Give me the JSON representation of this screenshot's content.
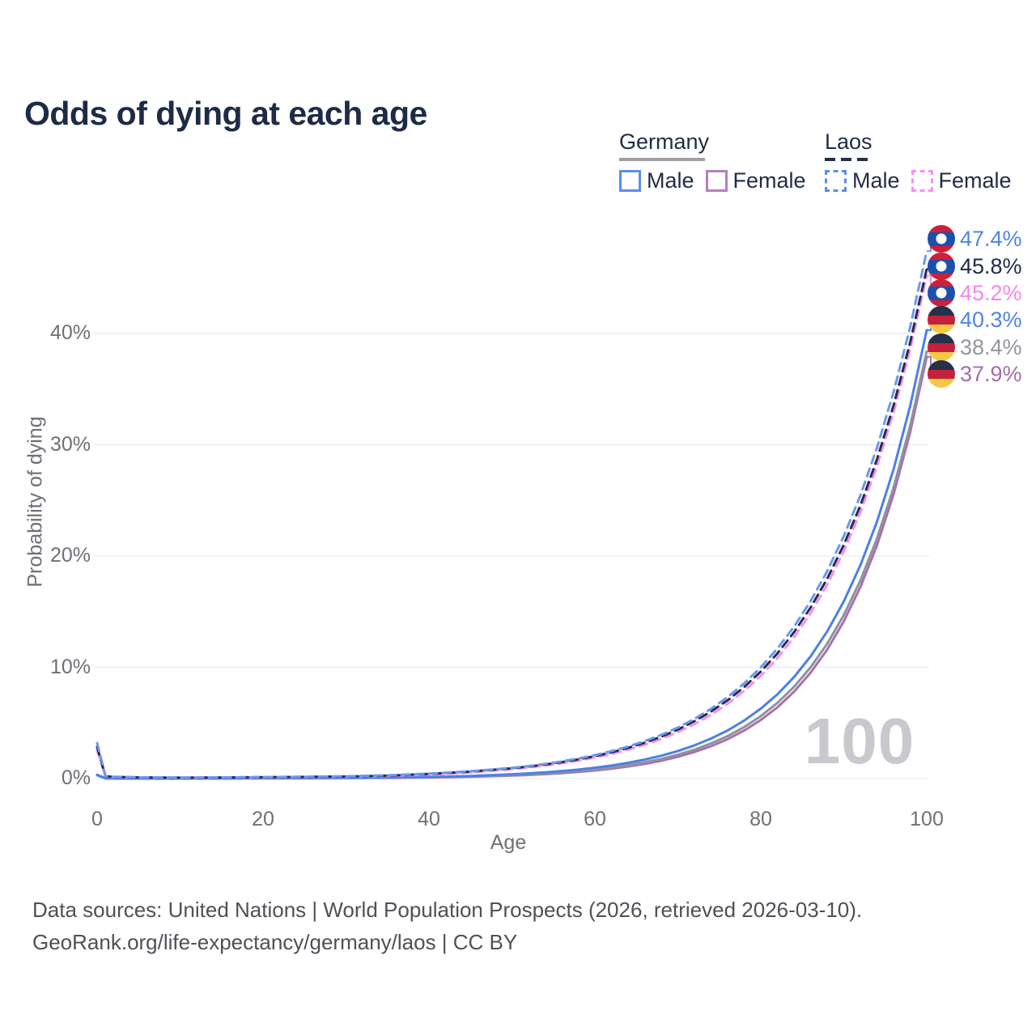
{
  "title": "Odds of dying at each age",
  "legend": {
    "groups": [
      {
        "label": "Germany",
        "line_style": "solid",
        "line_color": "#9d9da3",
        "items": [
          {
            "label": "Male",
            "swatch_color": "#5b8def",
            "swatch_style": "solid"
          },
          {
            "label": "Female",
            "swatch_color": "#b77dbf",
            "swatch_style": "solid"
          }
        ]
      },
      {
        "label": "Laos",
        "line_style": "dashed",
        "line_color": "#232f49",
        "items": [
          {
            "label": "Male",
            "swatch_color": "#5b8def",
            "swatch_style": "dashed"
          },
          {
            "label": "Female",
            "swatch_color": "#f98df2",
            "swatch_style": "dashed"
          }
        ]
      }
    ]
  },
  "watermark": "100",
  "footer": {
    "line1": "Data sources: United Nations | World Population Prospects (2026, retrieved 2026-03-10).",
    "line2": "GeoRank.org/life-expectancy/germany/laos | CC BY"
  },
  "flags": {
    "laos": {
      "stripes": [
        "#ce2038",
        "#1b50ae",
        "#ce2038"
      ],
      "stripe_heights": [
        25,
        50,
        25
      ],
      "disc": "#ffffff"
    },
    "germany": {
      "stripes": [
        "#26304a",
        "#c5203c",
        "#f5c843"
      ],
      "stripe_heights": [
        34,
        33,
        33
      ]
    }
  },
  "chart_data": {
    "type": "line",
    "title": "Odds of dying at each age",
    "xlabel": "Age",
    "ylabel": "Probability of dying",
    "xlim": [
      0,
      100
    ],
    "ylim": [
      0,
      47.5
    ],
    "x_ticks": [
      0,
      20,
      40,
      60,
      80,
      100
    ],
    "x_tick_labels": [
      "0",
      "20",
      "40",
      "60",
      "80",
      "100"
    ],
    "y_ticks": [
      0,
      10,
      20,
      30,
      40
    ],
    "y_tick_labels": [
      "0%",
      "10%",
      "20%",
      "30%",
      "40%"
    ],
    "grid": "horizontal",
    "legend_position": "top-right",
    "ages": [
      0,
      1,
      2,
      5,
      10,
      15,
      20,
      25,
      30,
      35,
      40,
      45,
      50,
      52,
      54,
      56,
      58,
      60,
      62,
      64,
      66,
      68,
      70,
      72,
      74,
      76,
      78,
      80,
      82,
      84,
      86,
      88,
      90,
      92,
      94,
      96,
      98,
      100
    ],
    "series": [
      {
        "name": "Laos Male",
        "country": "Laos",
        "sex": "Male",
        "style": "dashed",
        "color": "#6d96f0",
        "label_color": "#4f83ee",
        "end_label": "47.4%",
        "flag": "laos",
        "values": [
          3.2,
          0.24,
          0.17,
          0.12,
          0.1,
          0.11,
          0.14,
          0.17,
          0.21,
          0.3,
          0.45,
          0.66,
          0.97,
          1.13,
          1.32,
          1.55,
          1.81,
          2.11,
          2.47,
          2.88,
          3.37,
          3.93,
          4.59,
          5.37,
          6.27,
          7.33,
          8.56,
          10.0,
          11.69,
          13.65,
          15.95,
          18.64,
          21.78,
          25.44,
          29.73,
          34.73,
          40.57,
          47.4
        ]
      },
      {
        "name": "Laos Both sexes",
        "country": "Laos",
        "sex": "Both",
        "style": "dashed",
        "color": "#232f49",
        "label_color": "#1f2b44",
        "end_label": "45.8%",
        "flag": "laos",
        "values": [
          2.85,
          0.22,
          0.16,
          0.11,
          0.09,
          0.1,
          0.13,
          0.16,
          0.19,
          0.27,
          0.42,
          0.63,
          0.93,
          1.08,
          1.27,
          1.48,
          1.73,
          2.02,
          2.36,
          2.76,
          3.23,
          3.77,
          4.41,
          5.16,
          6.03,
          7.04,
          8.23,
          9.62,
          11.25,
          13.15,
          15.37,
          17.96,
          21.0,
          24.54,
          28.68,
          33.53,
          39.19,
          45.8
        ]
      },
      {
        "name": "Laos Female",
        "country": "Laos",
        "sex": "Female",
        "style": "dashed",
        "color": "#f68cf2",
        "label_color": "#f884f0",
        "end_label": "45.2%",
        "flag": "laos",
        "values": [
          2.55,
          0.2,
          0.14,
          0.1,
          0.08,
          0.09,
          0.11,
          0.14,
          0.17,
          0.24,
          0.36,
          0.55,
          0.85,
          1.0,
          1.17,
          1.38,
          1.61,
          1.89,
          2.21,
          2.6,
          3.04,
          3.56,
          4.18,
          4.89,
          5.74,
          6.72,
          7.88,
          9.24,
          10.83,
          12.69,
          14.87,
          17.43,
          20.43,
          23.95,
          28.07,
          32.9,
          38.56,
          45.2
        ]
      },
      {
        "name": "Germany Male",
        "country": "Germany",
        "sex": "Male",
        "style": "solid",
        "color": "#4b80e9",
        "label_color": "#4f83ee",
        "end_label": "40.3%",
        "flag": "germany",
        "values": [
          0.35,
          0.03,
          0.02,
          0.01,
          0.01,
          0.02,
          0.05,
          0.06,
          0.07,
          0.1,
          0.15,
          0.24,
          0.39,
          0.47,
          0.56,
          0.68,
          0.81,
          0.98,
          1.18,
          1.42,
          1.71,
          2.06,
          2.48,
          2.99,
          3.6,
          4.33,
          5.22,
          6.29,
          7.57,
          9.12,
          10.98,
          13.22,
          15.92,
          19.17,
          23.08,
          27.79,
          33.47,
          40.3
        ]
      },
      {
        "name": "Germany Both sexes",
        "country": "Germany",
        "sex": "Both",
        "style": "solid",
        "color": "#8f929b",
        "label_color": "#94959d",
        "end_label": "38.4%",
        "flag": "germany",
        "values": [
          0.33,
          0.03,
          0.02,
          0.01,
          0.01,
          0.02,
          0.04,
          0.05,
          0.06,
          0.08,
          0.13,
          0.2,
          0.31,
          0.38,
          0.46,
          0.56,
          0.68,
          0.82,
          1.0,
          1.21,
          1.46,
          1.77,
          2.15,
          2.6,
          3.16,
          3.82,
          4.63,
          5.62,
          6.81,
          8.25,
          10.0,
          12.12,
          14.69,
          17.8,
          21.57,
          26.14,
          31.69,
          38.4
        ]
      },
      {
        "name": "Germany Female",
        "country": "Germany",
        "sex": "Female",
        "style": "solid",
        "color": "#a671ae",
        "label_color": "#a26dac",
        "end_label": "37.9%",
        "flag": "germany",
        "values": [
          0.3,
          0.02,
          0.02,
          0.01,
          0.01,
          0.01,
          0.02,
          0.03,
          0.05,
          0.07,
          0.1,
          0.17,
          0.27,
          0.33,
          0.4,
          0.49,
          0.6,
          0.73,
          0.89,
          1.09,
          1.32,
          1.61,
          1.96,
          2.39,
          2.91,
          3.55,
          4.32,
          5.27,
          6.41,
          7.81,
          9.52,
          11.59,
          14.13,
          17.21,
          20.96,
          25.54,
          31.11,
          37.9
        ]
      }
    ]
  }
}
